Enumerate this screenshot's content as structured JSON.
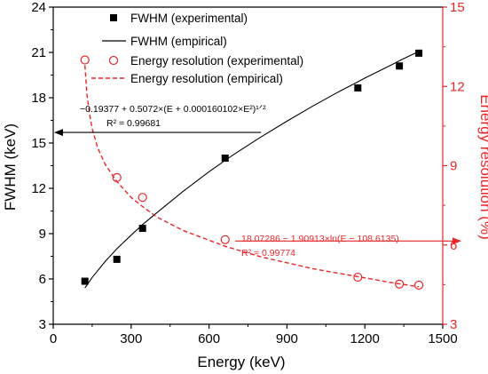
{
  "chart_data": {
    "type": "scatter",
    "xlabel": "Energy (keV)",
    "ylabel_left": "FWHM (keV)",
    "ylabel_right": "Energy resolution (%)",
    "xlim": [
      0,
      1500
    ],
    "ylim_left": [
      3,
      24
    ],
    "ylim_right": [
      3,
      15
    ],
    "x_ticks": [
      0,
      300,
      600,
      900,
      1200,
      1500
    ],
    "x_tick_labels": [
      "0",
      "300",
      "600",
      "900",
      "1200",
      "1500"
    ],
    "y_left_ticks": [
      3,
      6,
      9,
      12,
      15,
      18,
      21,
      24
    ],
    "y_left_tick_labels": [
      "3",
      "6",
      "9",
      "12",
      "15",
      "18",
      "21",
      "24"
    ],
    "y_right_ticks": [
      3,
      6,
      9,
      12,
      15
    ],
    "y_right_tick_labels": [
      "3",
      "6",
      "9",
      "12",
      "15"
    ],
    "colors": {
      "fwhm": "#000000",
      "resolution": "#e8262a"
    },
    "series": [
      {
        "name": "FWHM (experimental)",
        "axis": "left",
        "style": "square-markers",
        "x": [
          122,
          245,
          344,
          662,
          1173,
          1333,
          1408
        ],
        "y": [
          5.85,
          7.3,
          9.35,
          14.0,
          18.65,
          20.1,
          20.95
        ]
      },
      {
        "name": "FWHM (empirical)",
        "axis": "left",
        "style": "solid-line",
        "x": [
          122,
          150,
          200,
          245,
          300,
          344,
          400,
          500,
          600,
          662,
          700,
          800,
          900,
          1000,
          1100,
          1173,
          1200,
          1300,
          1333,
          1400
        ],
        "y": [
          5.4,
          6.1,
          7.15,
          8.0,
          8.9,
          9.6,
          10.4,
          11.8,
          13.1,
          13.85,
          14.3,
          15.4,
          16.45,
          17.45,
          18.4,
          19.05,
          19.3,
          20.15,
          20.45,
          21.0
        ]
      },
      {
        "name": "Energy resolution (experimental)",
        "axis": "right",
        "style": "open-circles",
        "x": [
          122,
          245,
          344,
          662,
          1173,
          1333,
          1408
        ],
        "y": [
          13.0,
          8.55,
          7.8,
          6.2,
          4.78,
          4.52,
          4.48
        ]
      },
      {
        "name": "Energy resolution (empirical)",
        "axis": "right",
        "style": "dashed-line",
        "x": [
          122,
          130,
          140,
          150,
          170,
          200,
          245,
          300,
          344,
          400,
          500,
          662,
          800,
          1000,
          1173,
          1300,
          1408
        ],
        "y": [
          12.8,
          11.7,
          10.95,
          10.4,
          9.7,
          9.05,
          8.4,
          7.8,
          7.45,
          7.05,
          6.55,
          5.95,
          5.55,
          5.1,
          4.8,
          4.58,
          4.42
        ]
      }
    ],
    "annotations": [
      {
        "axis": "left",
        "formula": "−0.19377 + 0.5072×(E  + 0.000160102×E²)¹ᐟ²",
        "r2": "R² = 0.99681",
        "arrow_points_to": "left-axis"
      },
      {
        "axis": "right",
        "formula": "18.07286 − 1.90913×ln(E − 108.6135)",
        "r2": "R² = 0.99774",
        "arrow_points_to": "right-axis"
      }
    ],
    "legend_position": "top-left"
  }
}
